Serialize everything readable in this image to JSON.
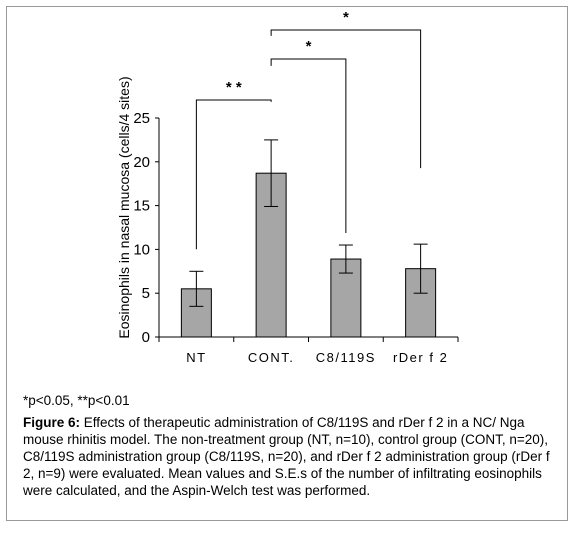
{
  "chart_data": {
    "type": "bar",
    "categories": [
      "NT",
      "CONT.",
      "C8/119S",
      "rDer f 2"
    ],
    "values": [
      5.5,
      18.7,
      8.9,
      7.8
    ],
    "errors": [
      2.0,
      3.8,
      1.6,
      2.8
    ],
    "ylabel": "Eosinophils in nasal mucosa (cells/4 sites)",
    "ylim": [
      0,
      25
    ],
    "yticks": [
      0,
      5,
      10,
      15,
      20,
      25
    ],
    "bar_color": "#a6a6a6",
    "significance": [
      {
        "from": 0,
        "to": 1,
        "label": "* *"
      },
      {
        "from": 1,
        "to": 2,
        "label": "*"
      },
      {
        "from": 1,
        "to": 3,
        "label": "*"
      }
    ]
  },
  "footnote": "*p<0.05, **p<0.01",
  "caption": {
    "label": "Figure 6:",
    "text": " Effects of therapeutic administration of C8/119S and rDer f 2 in a NC/ Nga mouse rhinitis model. The non-treatment group (NT, n=10), control group (CONT, n=20), C8/119S administration group (C8/119S, n=20), and rDer f 2 administration group (rDer f 2, n=9) were evaluated. Mean values and S.E.s of the number of infiltrating eosinophils were calculated, and the Aspin-Welch test was performed."
  }
}
